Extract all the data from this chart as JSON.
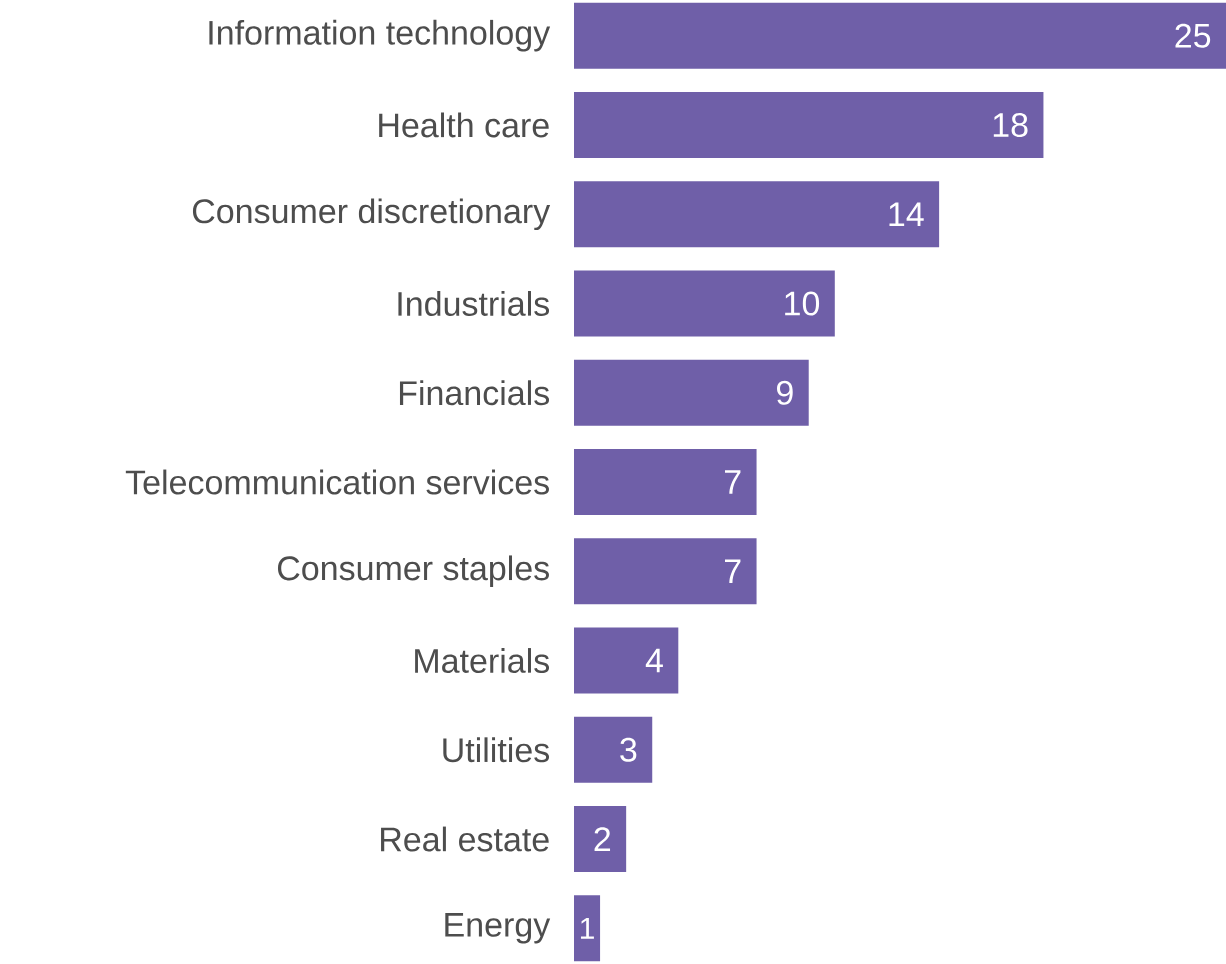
{
  "chart_data": {
    "type": "bar",
    "orientation": "horizontal",
    "categories": [
      "Information technology",
      "Health care",
      "Consumer discretionary",
      "Industrials",
      "Financials",
      "Telecommunication services",
      "Consumer staples",
      "Materials",
      "Utilities",
      "Real estate",
      "Energy"
    ],
    "values": [
      25,
      18,
      14,
      10,
      9,
      7,
      7,
      4,
      3,
      2,
      1
    ],
    "color": "#6f5fa8",
    "data_labels": true
  }
}
